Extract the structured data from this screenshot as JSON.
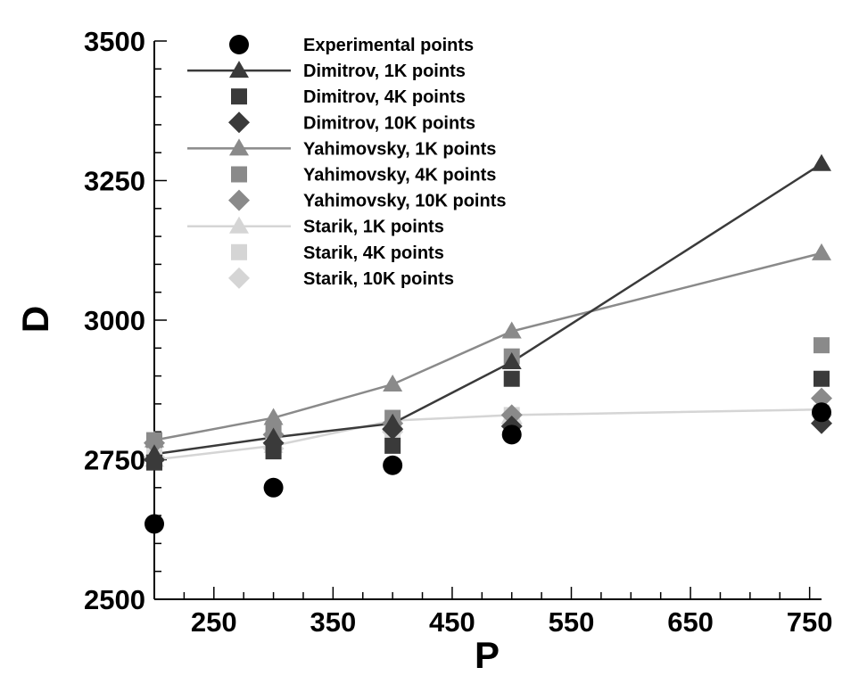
{
  "chart_data": {
    "type": "scatter",
    "xlabel": "P",
    "ylabel": "D",
    "xlim": [
      200,
      760
    ],
    "ylim": [
      2500,
      3500
    ],
    "x_ticks": [
      250,
      350,
      450,
      550,
      650,
      750
    ],
    "y_ticks": [
      2500,
      2750,
      3000,
      3250,
      3500
    ],
    "grid": false,
    "legend_position": "top-left",
    "colors": {
      "experimental": "#000000",
      "dimitrov": "#3a3a3a",
      "yahimovsky": "#8a8a8a",
      "starik": "#d5d5d5"
    },
    "series": [
      {
        "name": "Experimental points",
        "style": "marker",
        "marker": "circle",
        "color_key": "experimental",
        "x": [
          200,
          300,
          400,
          500,
          760
        ],
        "y": [
          2635,
          2700,
          2740,
          2795,
          2835
        ]
      },
      {
        "name": "Dimitrov, 1K points",
        "style": "line-marker",
        "marker": "triangle",
        "color_key": "dimitrov",
        "x": [
          200,
          300,
          400,
          500,
          760
        ],
        "y": [
          2760,
          2790,
          2815,
          2925,
          3280
        ]
      },
      {
        "name": "Dimitrov, 4K points",
        "style": "marker",
        "marker": "square",
        "color_key": "dimitrov",
        "x": [
          200,
          300,
          400,
          500,
          760
        ],
        "y": [
          2745,
          2765,
          2775,
          2895,
          2895
        ]
      },
      {
        "name": "Dimitrov, 10K points",
        "style": "marker",
        "marker": "diamond",
        "color_key": "dimitrov",
        "x": [
          200,
          300,
          400,
          500,
          760
        ],
        "y": [
          2750,
          2780,
          2805,
          2810,
          2815
        ]
      },
      {
        "name": "Yahimovsky, 1K points",
        "style": "line-marker",
        "marker": "triangle",
        "color_key": "yahimovsky",
        "x": [
          200,
          300,
          400,
          500,
          760
        ],
        "y": [
          2785,
          2825,
          2885,
          2980,
          3120
        ]
      },
      {
        "name": "Yahimovsky, 4K points",
        "style": "marker",
        "marker": "square",
        "color_key": "yahimovsky",
        "x": [
          200,
          300,
          400,
          500,
          760
        ],
        "y": [
          2785,
          2805,
          2825,
          2935,
          2955
        ]
      },
      {
        "name": "Yahimovsky, 10K points",
        "style": "marker",
        "marker": "diamond",
        "color_key": "yahimovsky",
        "x": [
          200,
          300,
          400,
          500,
          760
        ],
        "y": [
          2780,
          2795,
          2815,
          2830,
          2860
        ]
      },
      {
        "name": "Starik, 1K points",
        "style": "line-marker",
        "marker": "triangle",
        "color_key": "starik",
        "x": [
          200,
          300,
          400,
          500,
          760
        ],
        "y": [
          2750,
          2775,
          2820,
          2830,
          2840
        ]
      },
      {
        "name": "Starik, 4K points",
        "style": "marker",
        "marker": "square",
        "color_key": "starik",
        "x": [
          200,
          300,
          400,
          500,
          760
        ],
        "y": [
          2755,
          2780,
          2795,
          2830,
          2835
        ]
      },
      {
        "name": "Starik, 10K points",
        "style": "marker",
        "marker": "diamond",
        "color_key": "starik",
        "x": [
          200,
          300,
          400,
          500,
          760
        ],
        "y": [
          2755,
          2770,
          2800,
          2815,
          2830
        ]
      }
    ]
  }
}
